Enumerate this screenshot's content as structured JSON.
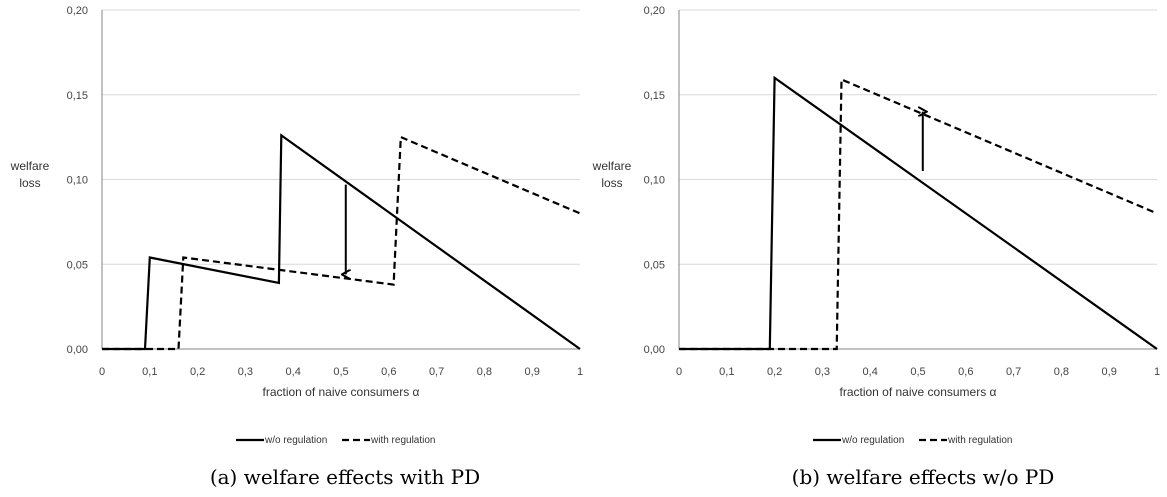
{
  "chart_data": [
    {
      "type": "line",
      "xlabel": "fraction of naive consumers α",
      "ylabel": [
        "welfare",
        "loss"
      ],
      "caption": "(a) welfare effects with PD",
      "xlim": [
        0,
        1
      ],
      "ylim": [
        0,
        0.2
      ],
      "x_ticks": [
        "0",
        "0,1",
        "0,2",
        "0,3",
        "0,4",
        "0,5",
        "0,6",
        "0,7",
        "0,8",
        "0,9",
        "1"
      ],
      "y_ticks": [
        "0,00",
        "0,05",
        "0,10",
        "0,15",
        "0,20"
      ],
      "grid": "horizontal",
      "legend_position": "bottom-center",
      "series": [
        {
          "name": "w/o regulation",
          "style": "solid",
          "points": [
            [
              0,
              0
            ],
            [
              0.09,
              0
            ],
            [
              0.1,
              0.054
            ],
            [
              0.37,
              0.039
            ],
            [
              0.375,
              0.126
            ],
            [
              1.0,
              0.0
            ]
          ]
        },
        {
          "name": "with regulation",
          "style": "dashed",
          "points": [
            [
              0,
              0
            ],
            [
              0.16,
              0
            ],
            [
              0.17,
              0.054
            ],
            [
              0.61,
              0.038
            ],
            [
              0.625,
              0.125
            ],
            [
              1.0,
              0.08
            ]
          ]
        }
      ],
      "annotation_arrow": {
        "x": 0.51,
        "y_from": 0.097,
        "y_to": 0.044,
        "direction": "down"
      }
    },
    {
      "type": "line",
      "xlabel": "fraction of naive consumers α",
      "ylabel": [
        "welfare",
        "loss"
      ],
      "caption": "(b) welfare effects w/o PD",
      "xlim": [
        0,
        1
      ],
      "ylim": [
        0,
        0.2
      ],
      "x_ticks": [
        "0",
        "0,1",
        "0,2",
        "0,3",
        "0,4",
        "0,5",
        "0,6",
        "0,7",
        "0,8",
        "0,9",
        "1"
      ],
      "y_ticks": [
        "0,00",
        "0,05",
        "0,10",
        "0,15",
        "0,20"
      ],
      "grid": "horizontal",
      "legend_position": "bottom-center",
      "series": [
        {
          "name": "w/o regulation",
          "style": "solid",
          "points": [
            [
              0,
              0
            ],
            [
              0.19,
              0
            ],
            [
              0.2,
              0.16
            ],
            [
              1.0,
              0.0
            ]
          ]
        },
        {
          "name": "with regulation",
          "style": "dashed",
          "points": [
            [
              0,
              0
            ],
            [
              0.33,
              0
            ],
            [
              0.34,
              0.159
            ],
            [
              1.0,
              0.08
            ]
          ]
        }
      ],
      "annotation_arrow": {
        "x": 0.51,
        "y_from": 0.105,
        "y_to": 0.14,
        "direction": "up"
      }
    }
  ]
}
